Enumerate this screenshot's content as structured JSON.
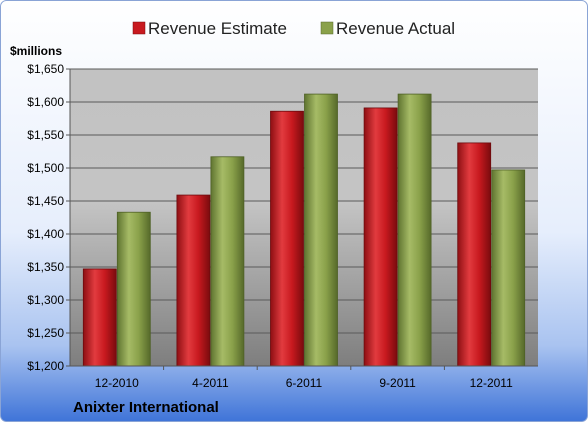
{
  "chart_data": {
    "type": "bar",
    "title": "",
    "ylabel": "$millions",
    "company": "Anixter International",
    "categories": [
      "12-2010",
      "4-2011",
      "6-2011",
      "9-2011",
      "12-2011"
    ],
    "series": [
      {
        "name": "Revenue Estimate",
        "color": "#c8191f",
        "values": [
          1347,
          1459,
          1586,
          1591,
          1538
        ]
      },
      {
        "name": "Revenue Actual",
        "color": "#8aa14a",
        "values": [
          1433,
          1517,
          1612,
          1612,
          1497
        ]
      }
    ],
    "ylim": [
      1200,
      1650
    ],
    "yticks": [
      1200,
      1250,
      1300,
      1350,
      1400,
      1450,
      1500,
      1550,
      1600,
      1650
    ],
    "ytick_labels": [
      "$1,200",
      "$1,250",
      "$1,300",
      "$1,350",
      "$1,400",
      "$1,450",
      "$1,500",
      "$1,550",
      "$1,600",
      "$1,650"
    ],
    "grid": true,
    "legend_position": "top-center"
  }
}
